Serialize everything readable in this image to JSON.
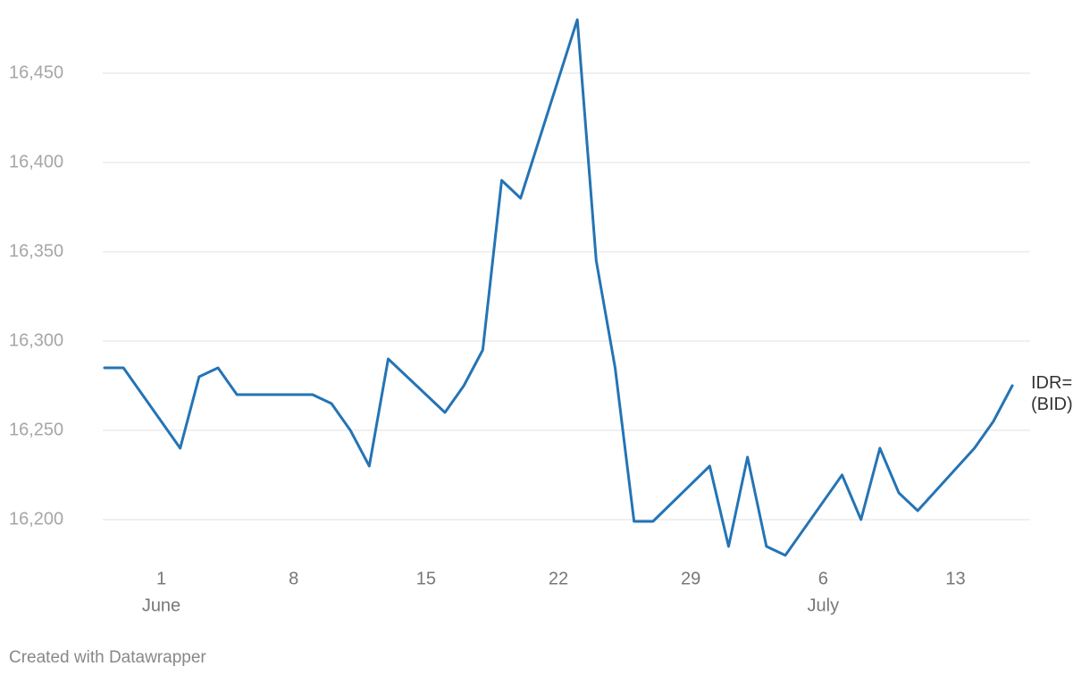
{
  "chart_data": {
    "type": "line",
    "x": [
      -2,
      -1,
      2,
      3,
      4,
      5,
      9,
      10,
      11,
      12,
      13,
      16,
      17,
      18,
      19,
      20,
      23,
      24,
      25,
      26,
      27,
      30,
      31,
      32,
      33,
      34,
      37,
      38,
      39,
      40,
      41,
      44,
      45,
      46
    ],
    "series": [
      {
        "name": "IDR= (BID)",
        "color": "#2474b5",
        "values": [
          16285,
          16285,
          16240,
          16280,
          16285,
          16270,
          16270,
          16265,
          16250,
          16230,
          16290,
          16260,
          16275,
          16295,
          16390,
          16380,
          16480,
          16345,
          16285,
          16199,
          16199,
          16230,
          16185,
          16235,
          16185,
          16180,
          16225,
          16200,
          16240,
          16215,
          16205,
          16240,
          16255,
          16275
        ]
      }
    ],
    "xlim": [
      -2,
      46
    ],
    "xticks": [
      1,
      8,
      15,
      22,
      29,
      {
        "value": 36,
        "label": "6"
      },
      {
        "value": 43,
        "label": "13"
      }
    ],
    "month_labels": [
      {
        "value": 1,
        "label": "June"
      },
      {
        "value": 36,
        "label": "July"
      }
    ],
    "ylim": [
      16180,
      16480
    ],
    "yticks": [
      {
        "value": 16200,
        "label": "16,200"
      },
      {
        "value": 16250,
        "label": "16,250"
      },
      {
        "value": 16300,
        "label": "16,300"
      },
      {
        "value": 16350,
        "label": "16,350"
      },
      {
        "value": 16400,
        "label": "16,400"
      },
      {
        "value": 16450,
        "label": "16,450"
      }
    ],
    "grid": true,
    "footer": "Created with Datawrapper"
  }
}
